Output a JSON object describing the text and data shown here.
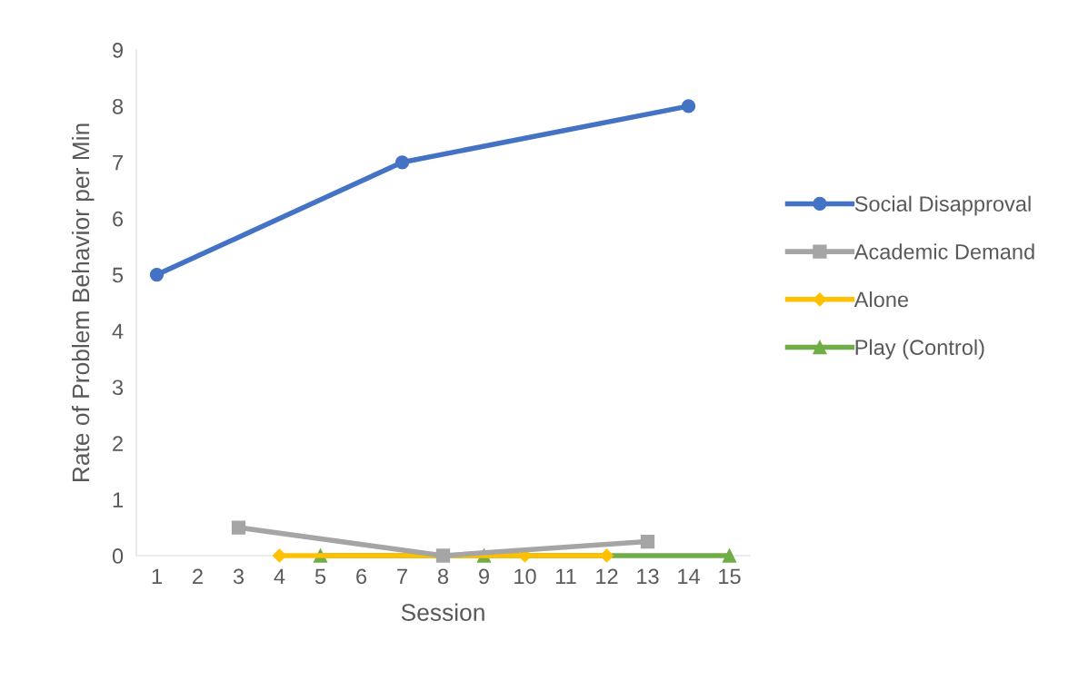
{
  "chart_data": {
    "type": "line",
    "xlabel": "Session",
    "ylabel": "Rate of Problem Behavior per Min",
    "categories": [
      "1",
      "2",
      "3",
      "4",
      "5",
      "6",
      "7",
      "8",
      "9",
      "10",
      "11",
      "12",
      "13",
      "14",
      "15"
    ],
    "series": [
      {
        "name": "Social Disapproval",
        "color": "#4472c4",
        "marker": "circle",
        "values": [
          5,
          null,
          null,
          null,
          null,
          null,
          7,
          null,
          null,
          null,
          null,
          null,
          null,
          8,
          null
        ]
      },
      {
        "name": "Academic Demand",
        "color": "#a5a5a5",
        "marker": "square",
        "values": [
          null,
          null,
          0.5,
          null,
          null,
          null,
          null,
          0,
          null,
          null,
          null,
          null,
          0.25,
          null,
          null
        ]
      },
      {
        "name": "Alone",
        "color": "#ffc000",
        "marker": "diamond",
        "values": [
          null,
          null,
          null,
          0,
          null,
          null,
          null,
          null,
          null,
          0,
          null,
          0,
          null,
          null,
          null
        ]
      },
      {
        "name": "Play (Control)",
        "color": "#70ad47",
        "marker": "triangle",
        "values": [
          null,
          null,
          null,
          null,
          0,
          null,
          null,
          null,
          0,
          null,
          null,
          null,
          null,
          null,
          0
        ]
      }
    ],
    "ylim": [
      0,
      9
    ],
    "yticks": [
      0,
      1,
      2,
      3,
      4,
      5,
      6,
      7,
      8,
      9
    ],
    "grid": false,
    "legend": "right",
    "line_style": "solid"
  }
}
